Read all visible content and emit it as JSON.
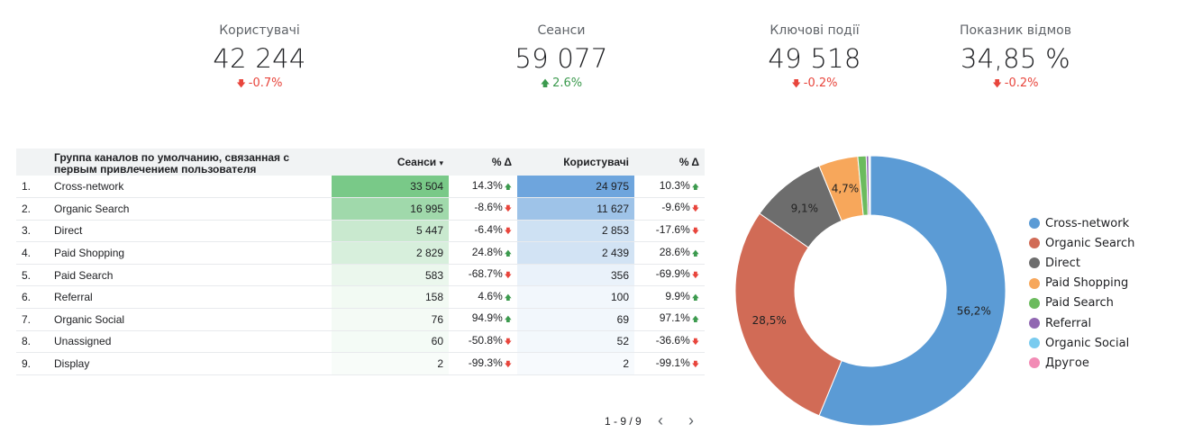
{
  "kpis": [
    {
      "label": "Користувачі",
      "value": "42 244",
      "delta": "-0.7%",
      "dir": "down"
    },
    {
      "label": "Сеанси",
      "value": "59 077",
      "delta": "2.6%",
      "dir": "up"
    },
    {
      "label": "Ключові події",
      "value": "49 518",
      "delta": "-0.2%",
      "dir": "down"
    },
    {
      "label": "Показник відмов",
      "value": "34,85 %",
      "delta": "-0.2%",
      "dir": "down"
    }
  ],
  "table": {
    "headers": {
      "channel": "Группа каналов по умолчанию, связанная с первым привлечением пользователя",
      "sessions": "Сеанси",
      "sort_indicator": "▾",
      "sessions_delta": "% Δ",
      "users": "Користувачі",
      "users_delta": "% Δ"
    },
    "rows": [
      {
        "num": "1.",
        "name": "Cross-network",
        "sessions": "33 504",
        "sessions_value": 33504,
        "sessions_delta": "14.3%",
        "sessions_dir": "up",
        "users": "24 975",
        "users_value": 24975,
        "users_delta": "10.3%",
        "users_dir": "up"
      },
      {
        "num": "2.",
        "name": "Organic Search",
        "sessions": "16 995",
        "sessions_value": 16995,
        "sessions_delta": "-8.6%",
        "sessions_dir": "down",
        "users": "11 627",
        "users_value": 11627,
        "users_delta": "-9.6%",
        "users_dir": "down"
      },
      {
        "num": "3.",
        "name": "Direct",
        "sessions": "5 447",
        "sessions_value": 5447,
        "sessions_delta": "-6.4%",
        "sessions_dir": "down",
        "users": "2 853",
        "users_value": 2853,
        "users_delta": "-17.6%",
        "users_dir": "down"
      },
      {
        "num": "4.",
        "name": "Paid Shopping",
        "sessions": "2 829",
        "sessions_value": 2829,
        "sessions_delta": "24.8%",
        "sessions_dir": "up",
        "users": "2 439",
        "users_value": 2439,
        "users_delta": "28.6%",
        "users_dir": "up"
      },
      {
        "num": "5.",
        "name": "Paid Search",
        "sessions": "583",
        "sessions_value": 583,
        "sessions_delta": "-68.7%",
        "sessions_dir": "down",
        "users": "356",
        "users_value": 356,
        "users_delta": "-69.9%",
        "users_dir": "down"
      },
      {
        "num": "6.",
        "name": "Referral",
        "sessions": "158",
        "sessions_value": 158,
        "sessions_delta": "4.6%",
        "sessions_dir": "up",
        "users": "100",
        "users_value": 100,
        "users_delta": "9.9%",
        "users_dir": "up"
      },
      {
        "num": "7.",
        "name": "Organic Social",
        "sessions": "76",
        "sessions_value": 76,
        "sessions_delta": "94.9%",
        "sessions_dir": "up",
        "users": "69",
        "users_value": 69,
        "users_delta": "97.1%",
        "users_dir": "up"
      },
      {
        "num": "8.",
        "name": "Unassigned",
        "sessions": "60",
        "sessions_value": 60,
        "sessions_delta": "-50.8%",
        "sessions_dir": "down",
        "users": "52",
        "users_value": 52,
        "users_delta": "-36.6%",
        "users_dir": "down"
      },
      {
        "num": "9.",
        "name": "Display",
        "sessions": "2",
        "sessions_value": 2,
        "sessions_delta": "-99.3%",
        "sessions_dir": "down",
        "users": "2",
        "users_value": 2,
        "users_delta": "-99.1%",
        "users_dir": "down"
      }
    ],
    "heat_colors": {
      "sessions": "#57bb6a",
      "users": "#4a8fd4"
    },
    "pagination": {
      "label": "1 - 9 / 9",
      "prev": "‹",
      "next": "›"
    }
  },
  "chart_data": {
    "type": "pie",
    "style": "donut",
    "categories": [
      "Cross-network",
      "Organic Search",
      "Direct",
      "Paid Shopping",
      "Paid Search",
      "Referral",
      "Organic Social",
      "Другое"
    ],
    "values": [
      56.2,
      28.5,
      9.1,
      4.7,
      1.0,
      0.3,
      0.13,
      0.07
    ],
    "labels": [
      "56,2%",
      "28,5%",
      "9,1%",
      "4,7%",
      "",
      "",
      "",
      ""
    ],
    "colors": [
      "#5b9bd5",
      "#d16b56",
      "#6d6d6d",
      "#f7a75b",
      "#6cbb5e",
      "#9167b2",
      "#79cbef",
      "#f28bb5"
    ],
    "legend_position": "right"
  }
}
